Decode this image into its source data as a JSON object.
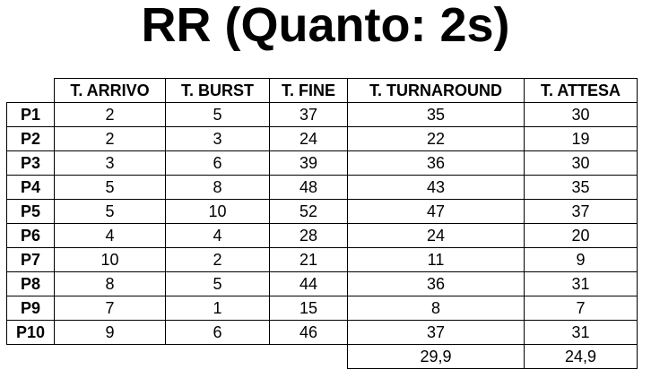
{
  "title": "RR (Quanto: 2s)",
  "table": {
    "columns": [
      "T. ARRIVO",
      "T. BURST",
      "T. FINE",
      "T. TURNAROUND",
      "T. ATTESA"
    ],
    "rows": [
      {
        "id": "P1",
        "values": [
          "2",
          "5",
          "37",
          "35",
          "30"
        ]
      },
      {
        "id": "P2",
        "values": [
          "2",
          "3",
          "24",
          "22",
          "19"
        ]
      },
      {
        "id": "P3",
        "values": [
          "3",
          "6",
          "39",
          "36",
          "30"
        ]
      },
      {
        "id": "P4",
        "values": [
          "5",
          "8",
          "48",
          "43",
          "35"
        ]
      },
      {
        "id": "P5",
        "values": [
          "5",
          "10",
          "52",
          "47",
          "37"
        ]
      },
      {
        "id": "P6",
        "values": [
          "4",
          "4",
          "28",
          "24",
          "20"
        ]
      },
      {
        "id": "P7",
        "values": [
          "10",
          "2",
          "21",
          "11",
          "9"
        ]
      },
      {
        "id": "P8",
        "values": [
          "8",
          "5",
          "44",
          "36",
          "31"
        ]
      },
      {
        "id": "P9",
        "values": [
          "7",
          "1",
          "15",
          "8",
          "7"
        ]
      },
      {
        "id": "P10",
        "values": [
          "9",
          "6",
          "46",
          "37",
          "31"
        ]
      }
    ],
    "averages": {
      "turnaround": "29,9",
      "waiting": "24,9"
    }
  }
}
